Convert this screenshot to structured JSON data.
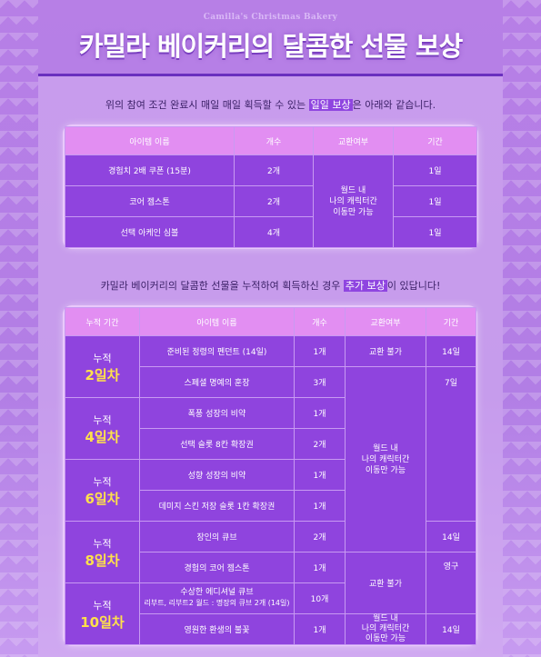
{
  "brand": "Camilla's Christmas Bakery",
  "title": "카밀라 베이커리의 달콤한 선물 보상",
  "intro1": {
    "before": "위의 참여 조건 완료시 매일 매일 획득할 수 있는 ",
    "highlight": "일일 보상",
    "after": "은 아래와 같습니다."
  },
  "daily": {
    "headers": [
      "아이템 이름",
      "개수",
      "교환여부",
      "기간"
    ],
    "rows": [
      {
        "item": "경험치 2배 쿠폰 (15분)",
        "count": "2개",
        "period": "1일"
      },
      {
        "item": "코어 젬스톤",
        "count": "2개",
        "period": "1일"
      },
      {
        "item": "선택 아케인 심볼",
        "count": "4개",
        "period": "1일"
      }
    ],
    "exchange": "월드 내\n나의 캐릭터간\n이동만 가능"
  },
  "intro2": {
    "before": "카밀라 베이커리의 달콤한 선물을 누적하여 획득하신 경우 ",
    "highlight": "추가 보상",
    "after": "이 있답니다!"
  },
  "cumulative": {
    "headers": [
      "누적 기간",
      "아이템 이름",
      "개수",
      "교환여부",
      "기간"
    ],
    "groups": [
      {
        "label": "누적",
        "days": "2일차"
      },
      {
        "label": "누적",
        "days": "4일차"
      },
      {
        "label": "누적",
        "days": "6일차"
      },
      {
        "label": "누적",
        "days": "8일차"
      },
      {
        "label": "누적",
        "days": "10일차"
      }
    ],
    "rows": [
      {
        "item": "준비된 정령의 펜던트 (14일)",
        "count": "1개"
      },
      {
        "item": "스페셜 명예의 훈장",
        "count": "3개"
      },
      {
        "item": "폭풍 성장의 비약",
        "count": "1개"
      },
      {
        "item": "선택 슬롯 8칸 확장권",
        "count": "2개"
      },
      {
        "item": "성향 성장의 비약",
        "count": "1개"
      },
      {
        "item": "데미지 스킨 저장 슬롯 1칸 확장권",
        "count": "1개"
      },
      {
        "item": "장인의 큐브",
        "count": "2개"
      },
      {
        "item": "경험의 코어 젬스톤",
        "count": "1개"
      },
      {
        "item": "수상한 에디셔널 큐브",
        "sub": "리부트, 리부트2 월드 : 명장의 큐브 2개 (14일)",
        "count": "10개"
      },
      {
        "item": "영원한 환생의 불꽃",
        "count": "1개"
      }
    ],
    "exchange_no": "교환 불가",
    "exchange_world": "월드 내\n나의 캐릭터간\n이동만 가능",
    "period_14": "14일",
    "period_7": "7일",
    "period_perm": "영구"
  },
  "colors": {
    "header": "#e28ef2",
    "cell": "#8f44de",
    "highlight": "#ffe14b",
    "background": "#b77fe6"
  }
}
